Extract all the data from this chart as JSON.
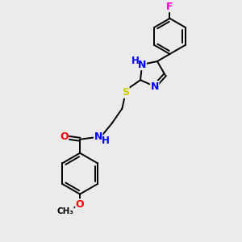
{
  "background_color": "#ebebeb",
  "bond_color": "#000000",
  "atom_colors": {
    "N": "#0000ff",
    "O": "#ff0000",
    "S": "#cccc00",
    "F": "#ff00cc",
    "C": "#000000",
    "H": "#000000"
  },
  "font_size": 8.5,
  "bond_width": 1.4,
  "xlim": [
    0,
    10
  ],
  "ylim": [
    0,
    10
  ]
}
